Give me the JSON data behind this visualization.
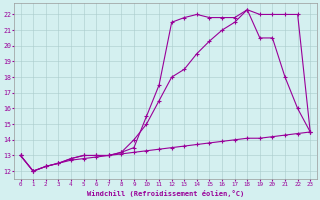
{
  "xlabel": "Windchill (Refroidissement éolien,°C)",
  "bg_color": "#d4f0f0",
  "line_color": "#990099",
  "grid_color": "#aaddcc",
  "xlim": [
    -0.5,
    23.5
  ],
  "ylim": [
    11.5,
    22.7
  ],
  "xticks": [
    0,
    1,
    2,
    3,
    4,
    5,
    6,
    7,
    8,
    9,
    10,
    11,
    12,
    13,
    14,
    15,
    16,
    17,
    18,
    19,
    20,
    21,
    22,
    23
  ],
  "yticks": [
    12,
    13,
    14,
    15,
    16,
    17,
    18,
    19,
    20,
    21,
    22
  ],
  "line1_x": [
    0,
    1,
    2,
    3,
    4,
    5,
    6,
    7,
    8,
    9,
    10,
    11,
    12,
    13,
    14,
    15,
    16,
    17,
    18,
    19,
    20,
    21,
    22,
    23
  ],
  "line1_y": [
    13,
    12,
    12.3,
    12.5,
    12.8,
    13.0,
    13.0,
    13.0,
    13.2,
    13.5,
    15.5,
    17.5,
    21.5,
    21.8,
    22.0,
    21.8,
    21.8,
    21.8,
    22.3,
    22.0,
    22.0,
    22.0,
    22.0,
    14.5
  ],
  "line2_x": [
    0,
    1,
    2,
    3,
    4,
    5,
    6,
    7,
    8,
    9,
    10,
    11,
    12,
    13,
    14,
    15,
    16,
    17,
    18,
    19,
    20,
    21,
    22,
    23
  ],
  "line2_y": [
    13,
    12,
    12.3,
    12.5,
    12.8,
    13.0,
    13.0,
    13.0,
    13.2,
    14.0,
    15.0,
    16.5,
    18.0,
    18.5,
    19.5,
    20.3,
    21.0,
    21.5,
    22.3,
    20.5,
    20.5,
    18.0,
    16.0,
    14.5
  ],
  "line3_x": [
    0,
    1,
    2,
    3,
    4,
    5,
    6,
    7,
    8,
    9,
    10,
    11,
    12,
    13,
    14,
    15,
    16,
    17,
    18,
    19,
    20,
    21,
    22,
    23
  ],
  "line3_y": [
    13,
    12,
    12.3,
    12.5,
    12.7,
    12.8,
    12.9,
    13.0,
    13.1,
    13.2,
    13.3,
    13.4,
    13.5,
    13.6,
    13.7,
    13.8,
    13.9,
    14.0,
    14.1,
    14.1,
    14.2,
    14.3,
    14.4,
    14.5
  ]
}
